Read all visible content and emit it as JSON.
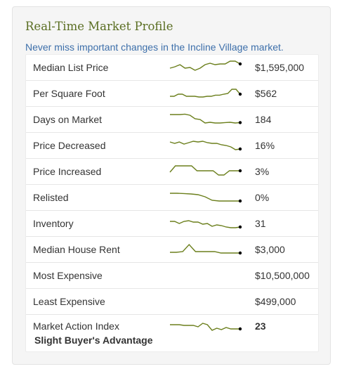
{
  "widget": {
    "title": "Real-Time Market Profile",
    "subtitle": "Never miss important changes in the Incline Village market."
  },
  "colors": {
    "title": "#5a6e22",
    "subtitle": "#3d6faa",
    "sparkline": "#6b7f1c",
    "endpoint": "#000000"
  },
  "rows": [
    {
      "label": "Median List Price",
      "value": "$1,595,000",
      "trend": [
        0.55,
        0.45,
        0.3,
        0.55,
        0.5,
        0.7,
        0.55,
        0.3,
        0.2,
        0.3,
        0.25,
        0.25,
        0.05,
        0.05,
        0.25
      ]
    },
    {
      "label": "Per Square Foot",
      "value": "$562",
      "trend": [
        0.7,
        0.7,
        0.55,
        0.55,
        0.7,
        0.7,
        0.7,
        0.75,
        0.75,
        0.7,
        0.7,
        0.62,
        0.62,
        0.55,
        0.5,
        0.2,
        0.2,
        0.55
      ]
    },
    {
      "label": "Days on Market",
      "value": "184",
      "trend": [
        0.15,
        0.15,
        0.15,
        0.12,
        0.2,
        0.45,
        0.5,
        0.75,
        0.7,
        0.75,
        0.75,
        0.72,
        0.7,
        0.75,
        0.72
      ]
    },
    {
      "label": "Price Decreased",
      "value": "16%",
      "trend": [
        0.25,
        0.35,
        0.25,
        0.4,
        0.3,
        0.2,
        0.25,
        0.2,
        0.3,
        0.35,
        0.35,
        0.45,
        0.5,
        0.6,
        0.8,
        0.75
      ]
    },
    {
      "label": "Price Increased",
      "value": "3%",
      "trend": [
        0.55,
        0.1,
        0.1,
        0.1,
        0.1,
        0.45,
        0.45,
        0.45,
        0.45,
        0.75,
        0.75,
        0.45,
        0.45,
        0.45
      ]
    },
    {
      "label": "Relisted",
      "value": "0%",
      "trend": [
        0.2,
        0.2,
        0.22,
        0.25,
        0.3,
        0.45,
        0.7,
        0.75,
        0.75,
        0.75,
        0.75
      ]
    },
    {
      "label": "Inventory",
      "value": "31",
      "trend": [
        0.35,
        0.35,
        0.5,
        0.35,
        0.3,
        0.4,
        0.4,
        0.55,
        0.5,
        0.7,
        0.6,
        0.65,
        0.75,
        0.8,
        0.8,
        0.75
      ]
    },
    {
      "label": "Median House Rent",
      "value": "$3,000",
      "trend": [
        0.7,
        0.7,
        0.65,
        0.15,
        0.65,
        0.65,
        0.65,
        0.65,
        0.75,
        0.75,
        0.75,
        0.75
      ]
    },
    {
      "label": "Most Expensive",
      "value": "$10,500,000",
      "trend": []
    },
    {
      "label": "Least Expensive",
      "value": "$499,000",
      "trend": []
    },
    {
      "label": "Market Action Index",
      "value": "23",
      "sublabel": "Slight Buyer's Advantage",
      "trend": [
        0.4,
        0.4,
        0.4,
        0.45,
        0.45,
        0.45,
        0.55,
        0.3,
        0.4,
        0.8,
        0.65,
        0.75,
        0.6,
        0.7,
        0.7,
        0.7
      ]
    }
  ]
}
